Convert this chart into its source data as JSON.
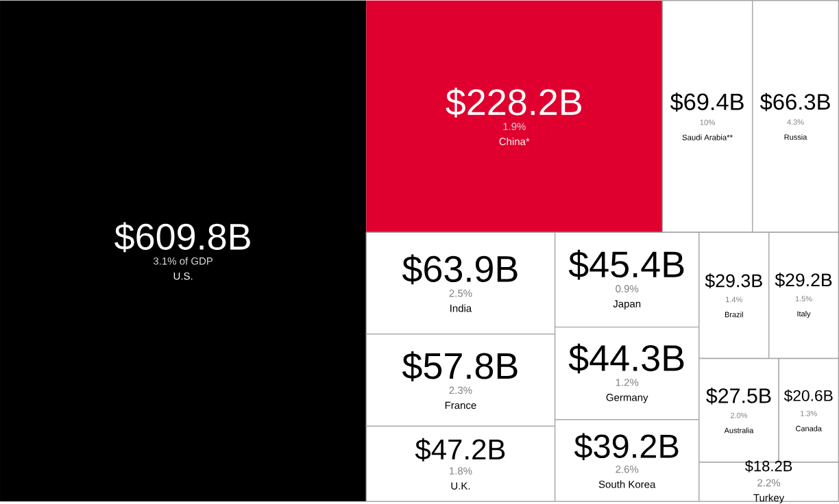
{
  "chart_data": {
    "type": "other",
    "categories": [
      "U.S.",
      "China*",
      "Saudi Arabia**",
      "Russia",
      "India",
      "France",
      "U.K.",
      "Japan",
      "Germany",
      "South Korea",
      "Brazil",
      "Italy",
      "Australia",
      "Canada",
      "Turkey"
    ],
    "series": [
      {
        "values": [
          609.8,
          228.2,
          69.4,
          66.3,
          63.9,
          57.8,
          47.2,
          45.4,
          44.3,
          39.2,
          29.3,
          29.2,
          27.5,
          20.6,
          18.2
        ],
        "value_labels": [
          "$609.8B",
          "$228.2B",
          "$69.4B",
          "$66.3B",
          "$63.9B",
          "$57.8B",
          "$47.2B",
          "$45.4B",
          "$44.3B",
          "$39.2B",
          "$29.3B",
          "$29.2B",
          "$27.5B",
          "$20.6B",
          "$18.2B"
        ],
        "colors": [
          "#000000",
          "#e0002f",
          "#ffffff",
          "#ffffff",
          "#ffffff",
          "#ffffff",
          "#ffffff",
          "#ffffff",
          "#ffffff",
          "#ffffff",
          "#ffffff",
          "#ffffff",
          "#ffffff",
          "#ffffff",
          "#ffffff"
        ]
      },
      {
        "values": [
          3.1,
          1.9,
          10,
          4.3,
          2.5,
          2.3,
          1.8,
          0.9,
          1.2,
          2.6,
          1.4,
          1.5,
          2.0,
          1.3,
          2.2
        ],
        "value_labels": [
          "3.1% of GDP",
          "1.9%",
          "10%",
          "4.3%",
          "2.5%",
          "2.3%",
          "1.8%",
          "0.9%",
          "1.2%",
          "2.6%",
          "1.4%",
          "1.5%",
          "2.0%",
          "1.3%",
          "2.2%"
        ]
      }
    ]
  }
}
